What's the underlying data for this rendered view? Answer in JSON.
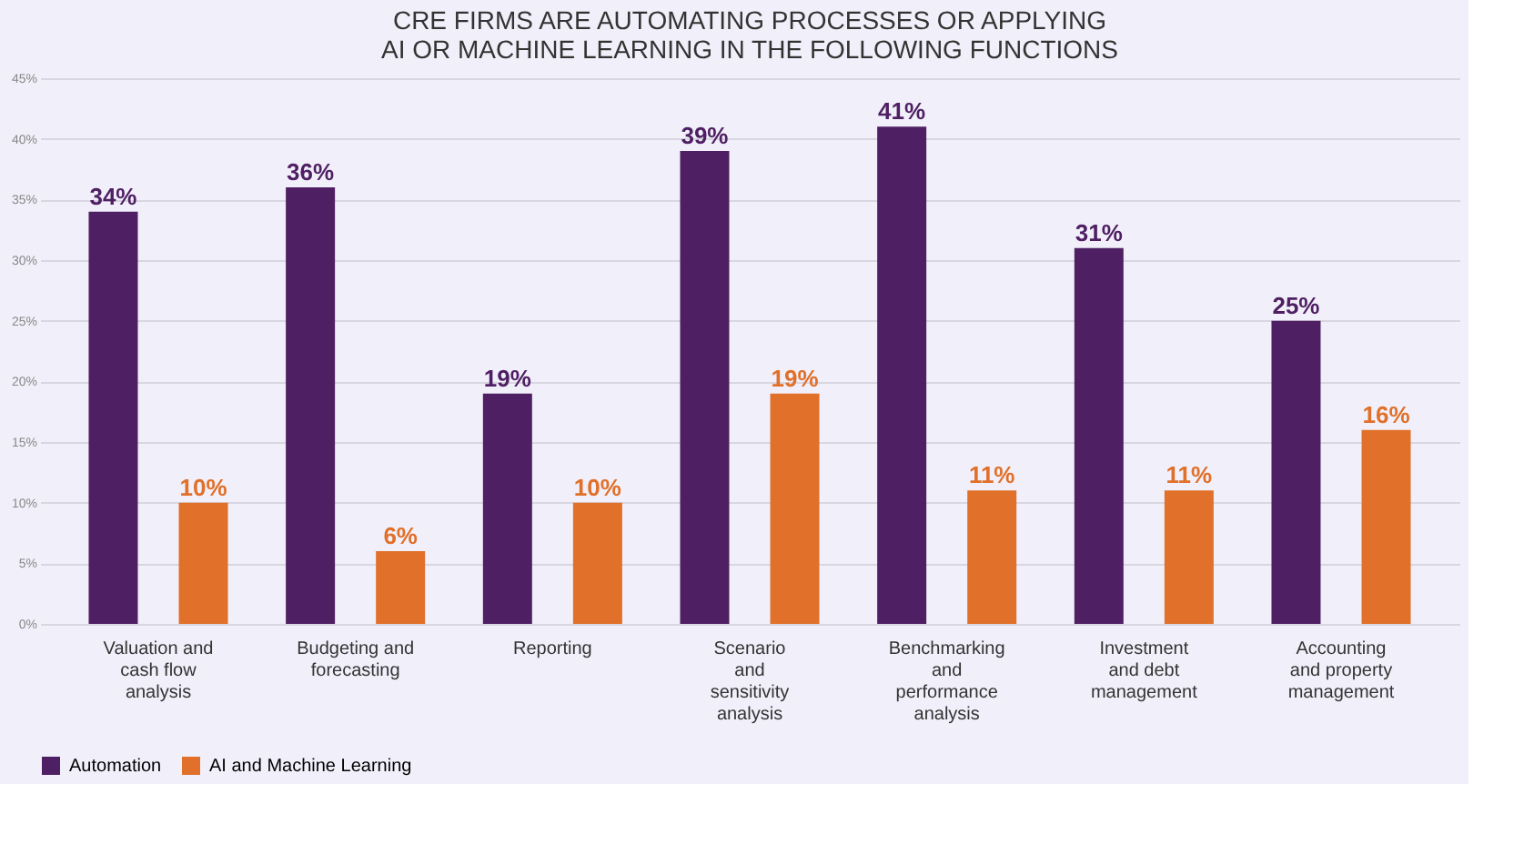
{
  "chart_data": {
    "type": "bar",
    "title": [
      "CRE FIRMS ARE AUTOMATING PROCESSES OR APPLYING",
      "AI OR MACHINE LEARNING IN THE FOLLOWING FUNCTIONS"
    ],
    "categories": [
      "Valuation and\ncash flow\nanalysis",
      "Budgeting and\nforecasting",
      "Reporting",
      "Scenario\nand\nsensitivity\nanalysis",
      "Benchmarking\nand\nperformance\nanalysis",
      "Investment\nand debt\nmanagement",
      "Accounting\nand property\nmanagement"
    ],
    "series": [
      {
        "name": "Automation",
        "color": "#4f1f63",
        "values": [
          34,
          36,
          19,
          39,
          41,
          31,
          25
        ],
        "value_labels": [
          "34%",
          "36%",
          "19%",
          "39%",
          "41%",
          "31%",
          "25%"
        ]
      },
      {
        "name": "AI and Machine Learning",
        "color": "#e0702a",
        "values": [
          10,
          6,
          10,
          19,
          11,
          11,
          16
        ],
        "value_labels": [
          "10%",
          "6%",
          "10%",
          "19%",
          "11%",
          "11%",
          "16%"
        ]
      }
    ],
    "ylim": [
      0,
      45
    ],
    "yticks": [
      {
        "value": 0,
        "label": "0%"
      },
      {
        "value": 5,
        "label": "5%"
      },
      {
        "value": 10,
        "label": "10%"
      },
      {
        "value": 15,
        "label": "15%"
      },
      {
        "value": 20,
        "label": "20%"
      },
      {
        "value": 25,
        "label": "25%"
      },
      {
        "value": 30,
        "label": "30%"
      },
      {
        "value": 35,
        "label": "35%"
      },
      {
        "value": 40,
        "label": "40%"
      },
      {
        "value": 45,
        "label": "45%"
      }
    ],
    "grid": "y",
    "legend": "bottom"
  }
}
